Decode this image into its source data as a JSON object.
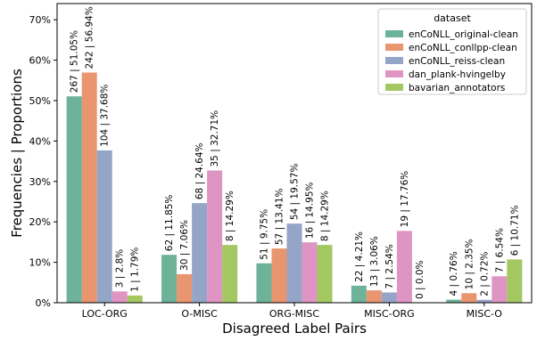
{
  "chart_data": {
    "type": "bar",
    "title": "",
    "xlabel": "Disagreed Label Pairs",
    "ylabel": "Frequencies | Proportions",
    "ylim": [
      0,
      0.74
    ],
    "yticks": [
      0,
      0.1,
      0.2,
      0.3,
      0.4,
      0.5,
      0.6,
      0.7
    ],
    "ytick_labels": [
      "0%",
      "10%",
      "20%",
      "30%",
      "40%",
      "50%",
      "60%",
      "70%"
    ],
    "categories": [
      "LOC-ORG",
      "O-MISC",
      "ORG-MISC",
      "MISC-ORG",
      "MISC-O"
    ],
    "grid": false,
    "legend": {
      "title": "dataset",
      "placement": "top-right"
    },
    "series": [
      {
        "name": "enCoNLL_original-clean",
        "color": "#6db39a",
        "values": [
          0.5105,
          0.1185,
          0.0975,
          0.0421,
          0.0076
        ],
        "labels": [
          "267 | 51.05%",
          "62 | 11.85%",
          "51 | 9.75%",
          "22 | 4.21%",
          "4 | 0.76%"
        ]
      },
      {
        "name": "enCoNLL_conllpp-clean",
        "color": "#e9956f",
        "values": [
          0.5694,
          0.0706,
          0.1341,
          0.0306,
          0.0235
        ],
        "labels": [
          "242 | 56.94%",
          "30 | 7.06%",
          "57 | 13.41%",
          "13 | 3.06%",
          "10 | 2.35%"
        ]
      },
      {
        "name": "enCoNLL_reiss-clean",
        "color": "#95a5c8",
        "values": [
          0.3768,
          0.2464,
          0.1957,
          0.0254,
          0.0072
        ],
        "labels": [
          "104 | 37.68%",
          "68 | 24.64%",
          "54 | 19.57%",
          "7 | 2.54%",
          "2 | 0.72%"
        ]
      },
      {
        "name": "dan_plank-hvingelby",
        "color": "#de95c3",
        "values": [
          0.028,
          0.3271,
          0.1495,
          0.1776,
          0.0654
        ],
        "labels": [
          "3 | 2.8%",
          "35 | 32.71%",
          "16 | 14.95%",
          "19 | 17.76%",
          "7 | 6.54%"
        ]
      },
      {
        "name": "bavarian_annotators",
        "color": "#a3c862",
        "values": [
          0.0179,
          0.1429,
          0.1429,
          0.0,
          0.1071
        ],
        "labels": [
          "1 | 1.79%",
          "8 | 14.29%",
          "8 | 14.29%",
          "0 | 0.0%",
          "6 | 10.71%"
        ]
      }
    ]
  }
}
